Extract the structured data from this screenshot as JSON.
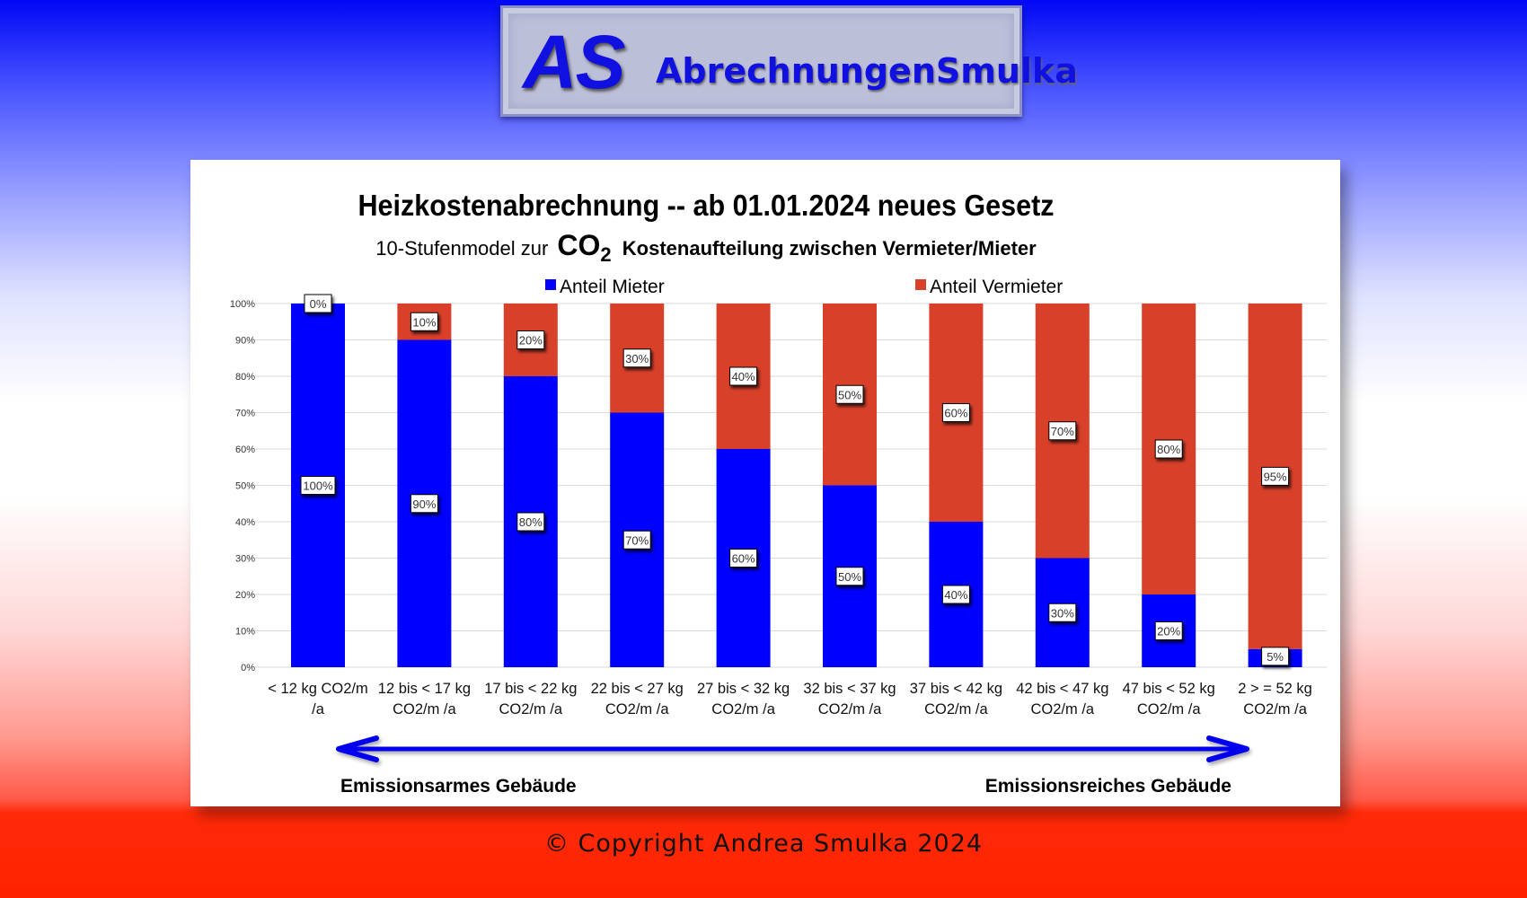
{
  "banner": {
    "logo_initials": "AS",
    "logo_name": "AbrechnungenSmulka"
  },
  "chart_data": {
    "type": "bar",
    "stacked": true,
    "title": "Heizkostenabrechnung -- ab 01.01.2024 neues Gesetz",
    "subtitle_prefix": "10-Stufenmodel zur",
    "subtitle_co2": "CO",
    "subtitle_sub": "2",
    "subtitle_suffix": "Kostenaufteilung zwischen Vermieter/Mieter",
    "legend": [
      "Anteil Mieter",
      "Anteil Vermieter"
    ],
    "legend_position": "top",
    "categories": [
      [
        "< 12 kg CO2/m",
        "/a"
      ],
      [
        "12 bis < 17 kg",
        "CO2/m /a"
      ],
      [
        "17 bis < 22 kg",
        "CO2/m /a"
      ],
      [
        "22 bis < 27 kg",
        "CO2/m /a"
      ],
      [
        "27 bis < 32 kg",
        "CO2/m /a"
      ],
      [
        "32 bis < 37 kg",
        "CO2/m /a"
      ],
      [
        "37 bis < 42 kg",
        "CO2/m /a"
      ],
      [
        "42 bis < 47 kg",
        "CO2/m /a"
      ],
      [
        "47 bis < 52 kg",
        "CO2/m /a"
      ],
      [
        "2 > = 52 kg",
        "CO2/m /a"
      ]
    ],
    "series": [
      {
        "name": "Anteil Mieter",
        "color": "#0000ff",
        "values": [
          100,
          90,
          80,
          70,
          60,
          50,
          40,
          30,
          20,
          5
        ]
      },
      {
        "name": "Anteil Vermieter",
        "color": "#d9402a",
        "values": [
          0,
          10,
          20,
          30,
          40,
          50,
          60,
          70,
          80,
          95
        ]
      }
    ],
    "yticks": [
      "0%",
      "10%",
      "20%",
      "30%",
      "40%",
      "50%",
      "60%",
      "70%",
      "80%",
      "90%",
      "100%"
    ],
    "ylim": [
      0,
      100
    ],
    "grid": true,
    "arrow_left_label": "Emissionsarmes Gebäude",
    "arrow_right_label": "Emissionsreiches Gebäude",
    "arrow_color": "#0000ee"
  },
  "footer": {
    "copyright": "© Copyright Andrea Smulka 2024"
  }
}
